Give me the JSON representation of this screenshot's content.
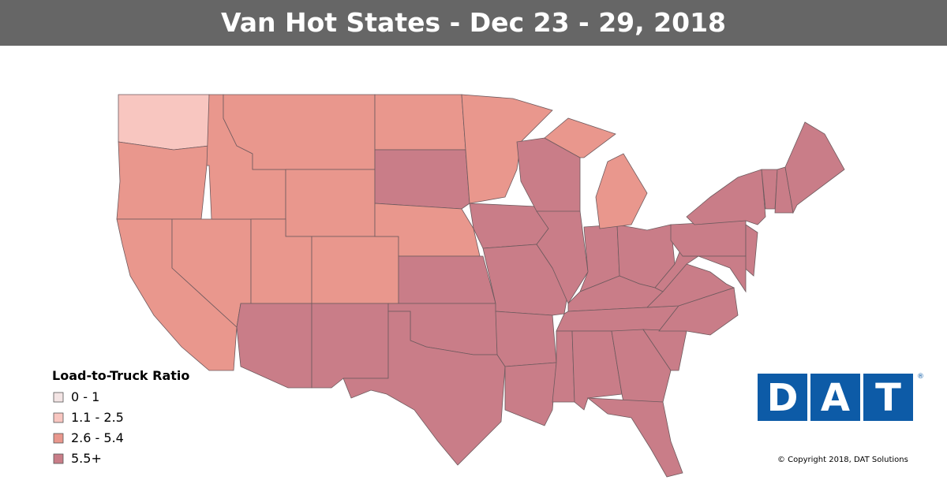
{
  "title": "Van Hot States - Dec 23 - 29, 2018",
  "legend": {
    "title": "Load-to-Truck Ratio",
    "items": [
      {
        "label": "0 - 1",
        "color": "#f3e4e4"
      },
      {
        "label": "1.1 - 2.5",
        "color": "#f8c6c0"
      },
      {
        "label": "2.6 - 5.4",
        "color": "#e9978d"
      },
      {
        "label": "5.5+",
        "color": "#c97d88"
      }
    ]
  },
  "map": {
    "regions": [
      1,
      2,
      2,
      2,
      2,
      2,
      2,
      2,
      2,
      3,
      3,
      2,
      3,
      2,
      3,
      3,
      3,
      3,
      3,
      3,
      2,
      3,
      3,
      3,
      3,
      3,
      3,
      3,
      3,
      3,
      3,
      3,
      3,
      3,
      3,
      3,
      3,
      3,
      3,
      3,
      3,
      3,
      3
    ]
  },
  "logo": {
    "letters": [
      "D",
      "A",
      "T"
    ],
    "mark": "®"
  },
  "copyright": "© Copyright 2018, DAT Solutions"
}
